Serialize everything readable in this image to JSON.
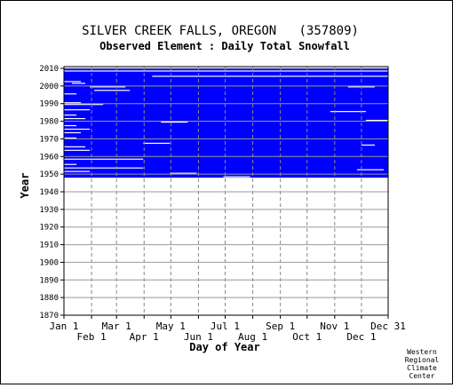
{
  "chart_data": {
    "type": "heatmap",
    "title": "SILVER CREEK FALLS, OREGON   (357809)",
    "subtitle": "Observed Element : Daily Total Snowfall",
    "xlabel": "Day of Year",
    "ylabel": "Year",
    "xlim": [
      "Jan 1",
      "Dec 31"
    ],
    "ylim": [
      1870,
      2011
    ],
    "x_ticks_upper": [
      "Jan 1",
      "Mar 1",
      "May 1",
      "Jul 1",
      "Sep 1",
      "Nov 1",
      "Dec 31"
    ],
    "x_ticks_lower": [
      "Feb 1",
      "Apr 1",
      "Jun 1",
      "Aug 1",
      "Oct 1",
      "Dec 1"
    ],
    "y_ticks": [
      1870,
      1880,
      1890,
      1900,
      1910,
      1920,
      1930,
      1940,
      1950,
      1960,
      1970,
      1980,
      1990,
      2000,
      2010
    ],
    "grid": true,
    "observed_color": "#0000ff",
    "observed_period": [
      1948,
      2011
    ],
    "missing_segments": [
      {
        "year": 2010,
        "start_day": 1,
        "end_day": 365
      },
      {
        "year": 2008,
        "start_day": 1,
        "end_day": 365
      },
      {
        "year": 2005,
        "start_day": 100,
        "end_day": 365
      },
      {
        "year": 2002,
        "start_day": 1,
        "end_day": 20
      },
      {
        "year": 2001,
        "start_day": 10,
        "end_day": 25
      },
      {
        "year": 1999,
        "start_day": 30,
        "end_day": 70
      },
      {
        "year": 1999,
        "start_day": 320,
        "end_day": 350
      },
      {
        "year": 1997,
        "start_day": 35,
        "end_day": 75
      },
      {
        "year": 1995,
        "start_day": 1,
        "end_day": 15
      },
      {
        "year": 1990,
        "start_day": 1,
        "end_day": 20
      },
      {
        "year": 1989,
        "start_day": 1,
        "end_day": 45
      },
      {
        "year": 1986,
        "start_day": 1,
        "end_day": 30
      },
      {
        "year": 1985,
        "start_day": 300,
        "end_day": 340
      },
      {
        "year": 1983,
        "start_day": 1,
        "end_day": 15
      },
      {
        "year": 1981,
        "start_day": 1,
        "end_day": 25
      },
      {
        "year": 1980,
        "start_day": 340,
        "end_day": 365
      },
      {
        "year": 1979,
        "start_day": 110,
        "end_day": 140
      },
      {
        "year": 1977,
        "start_day": 1,
        "end_day": 15
      },
      {
        "year": 1975,
        "start_day": 1,
        "end_day": 30
      },
      {
        "year": 1973,
        "start_day": 1,
        "end_day": 20
      },
      {
        "year": 1970,
        "start_day": 1,
        "end_day": 15
      },
      {
        "year": 1967,
        "start_day": 90,
        "end_day": 120
      },
      {
        "year": 1966,
        "start_day": 335,
        "end_day": 350
      },
      {
        "year": 1965,
        "start_day": 1,
        "end_day": 25
      },
      {
        "year": 1963,
        "start_day": 1,
        "end_day": 30
      },
      {
        "year": 1958,
        "start_day": 1,
        "end_day": 90
      },
      {
        "year": 1955,
        "start_day": 1,
        "end_day": 15
      },
      {
        "year": 1953,
        "start_day": 1,
        "end_day": 90
      },
      {
        "year": 1952,
        "start_day": 330,
        "end_day": 360
      },
      {
        "year": 1951,
        "start_day": 1,
        "end_day": 30
      },
      {
        "year": 1950,
        "start_day": 120,
        "end_day": 150
      },
      {
        "year": 1948,
        "start_day": 180,
        "end_day": 210
      }
    ]
  },
  "credit": [
    "Western",
    "Regional",
    "Climate",
    "Center"
  ]
}
